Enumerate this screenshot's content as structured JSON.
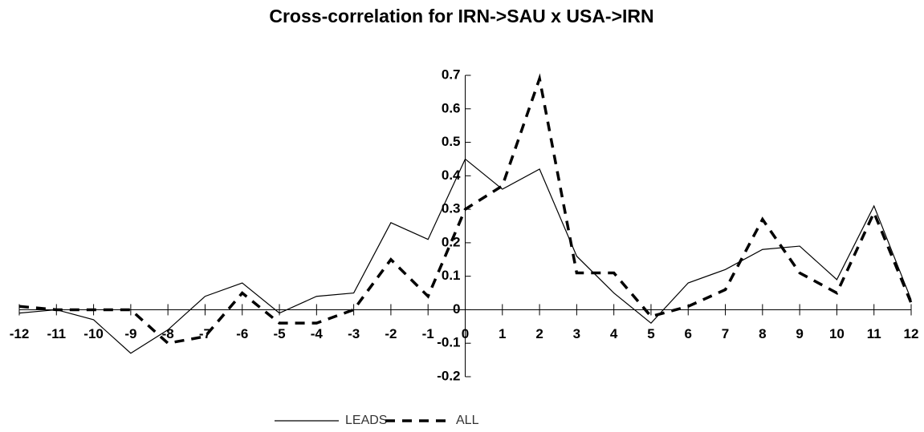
{
  "chart_data": {
    "type": "line",
    "title": "Cross-correlation for IRN->SAU x USA->IRN",
    "x": [
      -12,
      -11,
      -10,
      -9,
      -8,
      -7,
      -6,
      -5,
      -4,
      -3,
      -2,
      -1,
      0,
      1,
      2,
      3,
      4,
      5,
      6,
      7,
      8,
      9,
      10,
      11,
      12
    ],
    "series": [
      {
        "name": "LEADS",
        "color": "#000000",
        "dash": false,
        "values": [
          -0.01,
          0.0,
          -0.03,
          -0.13,
          -0.06,
          0.04,
          0.08,
          -0.01,
          0.04,
          0.05,
          0.26,
          0.21,
          0.45,
          0.36,
          0.42,
          0.16,
          0.05,
          -0.04,
          0.08,
          0.12,
          0.18,
          0.19,
          0.09,
          0.31,
          0.03
        ]
      },
      {
        "name": "ALL",
        "color": "#000000",
        "dash": true,
        "values": [
          0.01,
          0.0,
          0.0,
          0.0,
          -0.1,
          -0.08,
          0.05,
          -0.04,
          -0.04,
          0.0,
          0.15,
          0.04,
          0.3,
          0.37,
          0.69,
          0.11,
          0.11,
          -0.02,
          0.01,
          0.06,
          0.27,
          0.11,
          0.05,
          0.29,
          0.02
        ]
      }
    ],
    "xlim": [
      -12,
      12
    ],
    "xticks": [
      -12,
      -11,
      -10,
      -9,
      -8,
      -7,
      -6,
      -5,
      -4,
      -3,
      -2,
      -1,
      0,
      1,
      2,
      3,
      4,
      5,
      6,
      7,
      8,
      9,
      10,
      11,
      12
    ],
    "ylim": [
      -0.2,
      0.7
    ],
    "yticks": [
      -0.2,
      -0.1,
      0,
      0.1,
      0.2,
      0.3,
      0.4,
      0.5,
      0.6,
      0.7
    ],
    "legend": "bottom"
  }
}
